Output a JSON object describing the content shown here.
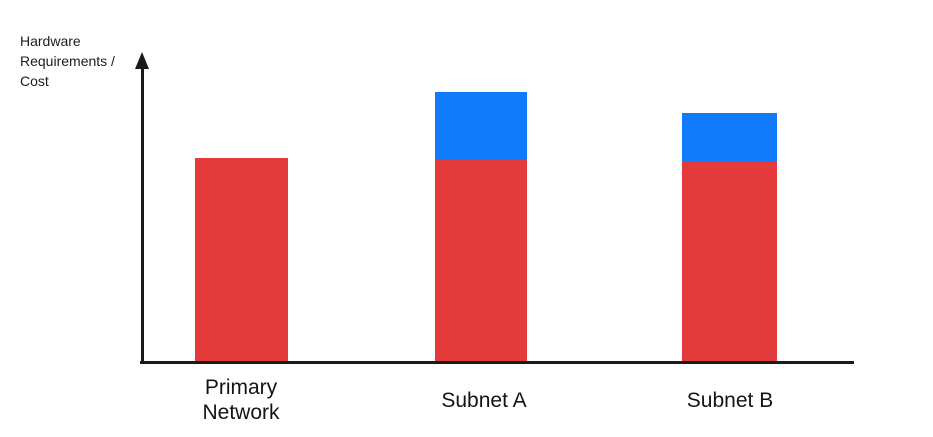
{
  "chart_data": {
    "type": "bar",
    "stacked": true,
    "title": "",
    "xlabel": "",
    "ylabel": "Hardware\nRequirements /\nCost",
    "categories": [
      "Primary Network",
      "Subnet A",
      "Subnet B"
    ],
    "series": [
      {
        "name": "red",
        "color": "#E33B3C",
        "values": [
          203,
          201,
          200
        ]
      },
      {
        "name": "blue",
        "color": "#107AFB",
        "values": [
          0,
          68,
          48
        ]
      }
    ],
    "ylim": [
      0,
      306
    ],
    "grid": false,
    "legend": "none",
    "axis_color": "#1a1a1a",
    "tick_labels": "none"
  }
}
